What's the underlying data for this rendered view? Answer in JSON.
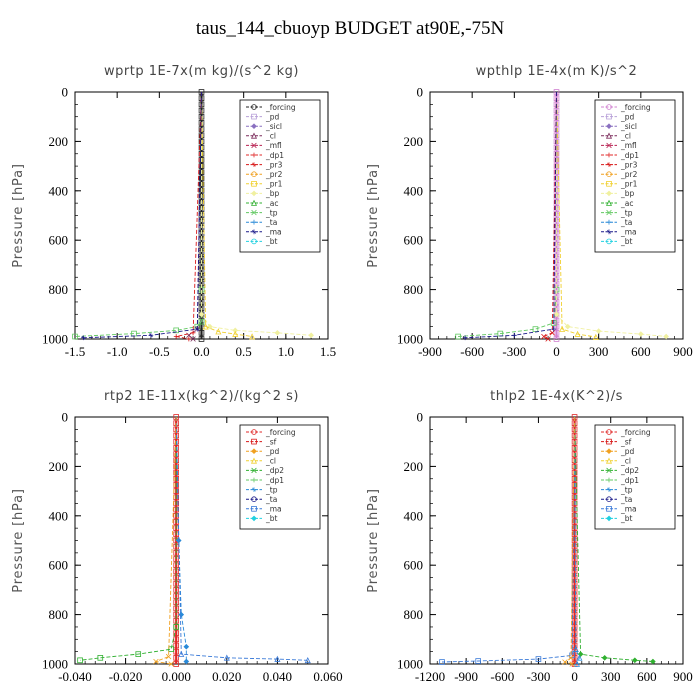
{
  "title": "taus_144_cbuoyp  BUDGET at90E,-75N",
  "chart_data": [
    {
      "type": "line",
      "title": "wprtp   1E-7x(m kg)/(s^2 kg)",
      "ylabel": "Pressure [hPa]",
      "ylim": [
        1000,
        0
      ],
      "yticks": [
        0,
        200,
        400,
        600,
        800,
        1000
      ],
      "xlim": [
        -1.5,
        1.5
      ],
      "xticks": [
        -1.5,
        -1.0,
        -0.5,
        0.0,
        0.5,
        1.0,
        1.5
      ],
      "xtick_labels": [
        "-1.5",
        "-1.0",
        "-0.5",
        "0.0",
        "0.5",
        "1.0",
        "1.5"
      ],
      "legend_position": "top-right",
      "legend": [
        "_forcing",
        "_pd",
        "_sicl",
        "_cl",
        "_mfl",
        "_dp1",
        "_pr3",
        "_pr2",
        "_pr1",
        "_bp",
        "_ac",
        "_tp",
        "_ta",
        "_ma",
        "_bt"
      ],
      "colors": [
        "#222222",
        "#b8a0d8",
        "#8a70c0",
        "#7a2a5a",
        "#b82050",
        "#e02828",
        "#d81818",
        "#f0a020",
        "#f0d030",
        "#f0f0a0",
        "#30b030",
        "#60c860",
        "#2a8ad8",
        "#1a1a8a",
        "#20d0e0"
      ],
      "series": [
        {
          "name": "_forcing",
          "x": [
            0,
            0,
            0,
            0,
            0,
            0,
            0,
            0,
            0,
            0,
            0
          ],
          "y": [
            0,
            100,
            200,
            300,
            400,
            500,
            600,
            700,
            800,
            900,
            1000
          ]
        },
        {
          "name": "_tp",
          "x": [
            0,
            0,
            0,
            -0.05,
            -0.3,
            -0.8,
            -1.5
          ],
          "y": [
            0,
            800,
            930,
            950,
            965,
            978,
            990
          ]
        },
        {
          "name": "_bp",
          "x": [
            0,
            0,
            0.1,
            0.4,
            0.9,
            1.3
          ],
          "y": [
            0,
            900,
            950,
            965,
            975,
            985
          ]
        },
        {
          "name": "_pr1",
          "x": [
            0,
            0.05,
            0.2,
            0.4,
            0.6
          ],
          "y": [
            0,
            950,
            970,
            980,
            990
          ]
        },
        {
          "name": "_cl",
          "x": [
            0,
            -0.05,
            -0.15,
            -0.1
          ],
          "y": [
            0,
            960,
            985,
            1000
          ]
        },
        {
          "name": "_pr3",
          "x": [
            0,
            -0.1,
            -0.3,
            -0.15
          ],
          "y": [
            0,
            975,
            990,
            1000
          ]
        },
        {
          "name": "_ma",
          "x": [
            0,
            -0.05,
            -0.6,
            -1.4
          ],
          "y": [
            0,
            960,
            985,
            995
          ]
        }
      ]
    },
    {
      "type": "line",
      "title": "wpthlp   1E-4x(m K)/s^2",
      "ylabel": "Pressure [hPa]",
      "ylim": [
        1000,
        0
      ],
      "yticks": [
        0,
        200,
        400,
        600,
        800,
        1000
      ],
      "xlim": [
        -900,
        900
      ],
      "xticks": [
        -900,
        -600,
        -300,
        0,
        300,
        600,
        900
      ],
      "xtick_labels": [
        "-900",
        "-600",
        "-300",
        "0",
        "300",
        "600",
        "900"
      ],
      "legend_position": "top-right",
      "legend": [
        "_forcing",
        "_pd",
        "_sicl",
        "_cl",
        "_mfl",
        "_dp1",
        "_pr3",
        "_pr2",
        "_pr1",
        "_bp",
        "_ac",
        "_tp",
        "_ta",
        "_ma",
        "_bt"
      ],
      "colors": [
        "#d080d0",
        "#b8a0d8",
        "#8a70c0",
        "#7a2a5a",
        "#b82050",
        "#e02828",
        "#d81818",
        "#f0a020",
        "#f0d030",
        "#f0f0a0",
        "#30b030",
        "#60c860",
        "#2a8ad8",
        "#1a1a8a",
        "#20d0e0"
      ],
      "series": [
        {
          "name": "_forcing",
          "x": [
            0,
            0,
            0,
            0,
            0,
            0,
            0,
            0,
            0,
            0,
            0
          ],
          "y": [
            0,
            100,
            200,
            300,
            400,
            500,
            600,
            700,
            800,
            900,
            1000
          ]
        },
        {
          "name": "_tp",
          "x": [
            0,
            0,
            -20,
            -150,
            -400,
            -700
          ],
          "y": [
            0,
            800,
            935,
            960,
            978,
            990
          ]
        },
        {
          "name": "_bp",
          "x": [
            0,
            0,
            80,
            300,
            600,
            780
          ],
          "y": [
            0,
            900,
            950,
            968,
            980,
            990
          ]
        },
        {
          "name": "_pr1",
          "x": [
            0,
            40,
            150,
            280
          ],
          "y": [
            0,
            960,
            980,
            992
          ]
        },
        {
          "name": "_pr3",
          "x": [
            0,
            -30,
            -90,
            -60
          ],
          "y": [
            0,
            975,
            990,
            1000
          ]
        },
        {
          "name": "_ma",
          "x": [
            0,
            -20,
            -300,
            -650
          ],
          "y": [
            0,
            960,
            985,
            995
          ]
        }
      ]
    },
    {
      "type": "line",
      "title": "rtp2   1E-11x(kg^2)/(kg^2 s)",
      "ylabel": "Pressure [hPa]",
      "ylim": [
        1000,
        0
      ],
      "yticks": [
        0,
        200,
        400,
        600,
        800,
        1000
      ],
      "xlim": [
        -0.04,
        0.06
      ],
      "xticks": [
        -0.04,
        -0.02,
        0.0,
        0.02,
        0.04,
        0.06
      ],
      "xtick_labels": [
        "-0.040",
        "-0.020",
        "0.000",
        "0.020",
        "0.040",
        "0.060"
      ],
      "legend_position": "top-right",
      "legend": [
        "_forcing",
        "_sf",
        "_pd",
        "_cl",
        "_dp2",
        "_dp1",
        "_tp",
        "_ta",
        "_ma",
        "_bt"
      ],
      "colors": [
        "#e02828",
        "#d81818",
        "#f0a020",
        "#f0d030",
        "#30b030",
        "#60c860",
        "#2a8ad8",
        "#1a1a8a",
        "#3a7ad8",
        "#20d0e0"
      ],
      "series": [
        {
          "name": "_forcing",
          "x": [
            0,
            0,
            0,
            0,
            0,
            0,
            0,
            0,
            0,
            0,
            0
          ],
          "y": [
            0,
            100,
            200,
            300,
            400,
            500,
            600,
            700,
            800,
            900,
            1000
          ]
        },
        {
          "name": "_dp2",
          "x": [
            0,
            0,
            -0.002,
            -0.015,
            -0.03,
            -0.038
          ],
          "y": [
            0,
            850,
            940,
            960,
            975,
            985
          ]
        },
        {
          "name": "_tp",
          "x": [
            0,
            0.001,
            0.002,
            0.004,
            0.004
          ],
          "y": [
            0,
            500,
            800,
            930,
            990
          ]
        },
        {
          "name": "_ma",
          "x": [
            0,
            0.002,
            0.02,
            0.04,
            0.052
          ],
          "y": [
            0,
            960,
            975,
            980,
            985
          ]
        },
        {
          "name": "_pd",
          "x": [
            0,
            -0.003,
            -0.008,
            -0.002
          ],
          "y": [
            0,
            970,
            990,
            1000
          ]
        }
      ]
    },
    {
      "type": "line",
      "title": "thlp2   1E-4x(K^2)/s",
      "ylabel": "Pressure [hPa]",
      "ylim": [
        1000,
        0
      ],
      "yticks": [
        0,
        200,
        400,
        600,
        800,
        1000
      ],
      "xlim": [
        -1200,
        900
      ],
      "xticks": [
        -1200,
        -900,
        -600,
        -300,
        0,
        300,
        600,
        900
      ],
      "xtick_labels": [
        "-1200",
        "-900",
        "-600",
        "-300",
        "0",
        "300",
        "600",
        "900"
      ],
      "legend_position": "top-right",
      "legend": [
        "_forcing",
        "_sf",
        "_pd",
        "_cl",
        "_dp2",
        "_dp1",
        "_tp",
        "_ta",
        "_ma",
        "_bt"
      ],
      "colors": [
        "#e02828",
        "#d81818",
        "#f0a020",
        "#f0d030",
        "#30b030",
        "#60c860",
        "#2a8ad8",
        "#1a1a8a",
        "#3a7ad8",
        "#20d0e0"
      ],
      "series": [
        {
          "name": "_forcing",
          "x": [
            0,
            0,
            0,
            0,
            0,
            0,
            0,
            0,
            0,
            0,
            0
          ],
          "y": [
            0,
            100,
            200,
            300,
            400,
            500,
            600,
            700,
            800,
            900,
            1000
          ]
        },
        {
          "name": "_ma",
          "x": [
            0,
            -20,
            -300,
            -800,
            -1100
          ],
          "y": [
            0,
            965,
            980,
            988,
            992
          ]
        },
        {
          "name": "_dp2",
          "x": [
            0,
            50,
            250,
            500,
            650
          ],
          "y": [
            0,
            960,
            975,
            985,
            990
          ]
        },
        {
          "name": "_tp",
          "x": [
            0,
            10,
            40,
            20
          ],
          "y": [
            0,
            940,
            975,
            1000
          ]
        },
        {
          "name": "_pd",
          "x": [
            0,
            -30,
            -80,
            -20
          ],
          "y": [
            0,
            975,
            992,
            1000
          ]
        }
      ]
    }
  ]
}
